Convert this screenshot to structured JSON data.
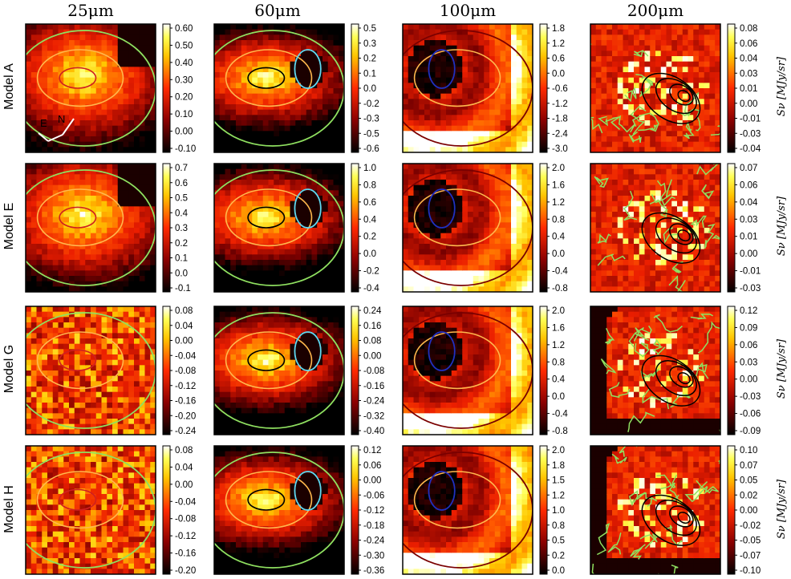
{
  "columns": [
    {
      "label": "25μm"
    },
    {
      "label": "60μm"
    },
    {
      "label": "100μm"
    },
    {
      "label": "200μm"
    }
  ],
  "rows": [
    {
      "label": "Model A"
    },
    {
      "label": "Model E"
    },
    {
      "label": "Model G"
    },
    {
      "label": "Model H"
    }
  ],
  "side_label": "Sν [MJy/sr]",
  "compass": {
    "east": "E",
    "north": "N"
  },
  "chart_data": {
    "type": "heatmap",
    "panels": [
      {
        "row": 0,
        "col": 0,
        "ticks": [
          "0.60",
          "0.50",
          "0.40",
          "0.30",
          "0.20",
          "0.10",
          "0.00",
          "-0.10"
        ]
      },
      {
        "row": 0,
        "col": 1,
        "ticks": [
          "0.5",
          "0.3",
          "0.2",
          "0.1",
          "0.0",
          "-0.2",
          "-0.3",
          "-0.5",
          "-0.6"
        ]
      },
      {
        "row": 0,
        "col": 2,
        "ticks": [
          "1.8",
          "1.2",
          "0.6",
          "0.0",
          "-0.6",
          "-1.2",
          "-1.8",
          "-2.4",
          "-3.0"
        ]
      },
      {
        "row": 0,
        "col": 3,
        "ticks": [
          "0.08",
          "0.06",
          "0.04",
          "0.03",
          "0.01",
          "0.00",
          "-0.01",
          "-0.03",
          "-0.04"
        ]
      },
      {
        "row": 1,
        "col": 0,
        "ticks": [
          "0.7",
          "0.6",
          "0.5",
          "0.4",
          "0.3",
          "0.2",
          "0.1",
          "0.0",
          "-0.1"
        ]
      },
      {
        "row": 1,
        "col": 1,
        "ticks": [
          "1.0",
          "0.8",
          "0.6",
          "0.4",
          "0.2",
          "0.0",
          "-0.2",
          "-0.4"
        ]
      },
      {
        "row": 1,
        "col": 2,
        "ticks": [
          "2.0",
          "1.6",
          "1.2",
          "0.8",
          "0.4",
          "0.0",
          "-0.4",
          "-0.8"
        ]
      },
      {
        "row": 1,
        "col": 3,
        "ticks": [
          "0.07",
          "0.06",
          "0.04",
          "0.03",
          "0.01",
          "0.00",
          "-0.01",
          "-0.03"
        ]
      },
      {
        "row": 2,
        "col": 0,
        "ticks": [
          "0.08",
          "0.04",
          "0.00",
          "-0.04",
          "-0.08",
          "-0.12",
          "-0.16",
          "-0.20",
          "-0.24"
        ]
      },
      {
        "row": 2,
        "col": 1,
        "ticks": [
          "0.24",
          "0.16",
          "0.08",
          "0.00",
          "-0.08",
          "-0.16",
          "-0.24",
          "-0.32",
          "-0.40"
        ]
      },
      {
        "row": 2,
        "col": 2,
        "ticks": [
          "2.0",
          "1.6",
          "1.2",
          "0.8",
          "0.4",
          "0.0",
          "-0.4",
          "-0.8"
        ]
      },
      {
        "row": 2,
        "col": 3,
        "ticks": [
          "0.12",
          "0.09",
          "0.06",
          "0.03",
          "0.00",
          "-0.03",
          "-0.06",
          "-0.09"
        ]
      },
      {
        "row": 3,
        "col": 0,
        "ticks": [
          "0.08",
          "0.04",
          "0.00",
          "-0.04",
          "-0.08",
          "-0.12",
          "-0.16",
          "-0.20"
        ]
      },
      {
        "row": 3,
        "col": 1,
        "ticks": [
          "0.12",
          "0.06",
          "0.00",
          "-0.06",
          "-0.12",
          "-0.18",
          "-0.24",
          "-0.30",
          "-0.36"
        ]
      },
      {
        "row": 3,
        "col": 2,
        "ticks": [
          "2.0",
          "1.8",
          "1.5",
          "1.2",
          "1.0",
          "0.8",
          "0.5",
          "0.2",
          "0.0"
        ]
      },
      {
        "row": 3,
        "col": 3,
        "ticks": [
          "0.10",
          "0.07",
          "0.05",
          "0.02",
          "0.00",
          "-0.02",
          "-0.05",
          "-0.07",
          "-0.10"
        ]
      }
    ]
  }
}
